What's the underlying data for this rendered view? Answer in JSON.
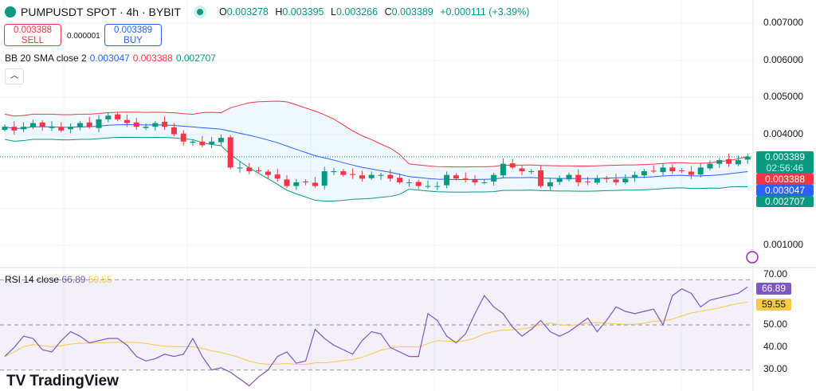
{
  "header": {
    "symbol": "PUMPUSDT SPOT · 4h · BYBIT",
    "o_label": "O",
    "o": "0.003278",
    "h_label": "H",
    "h": "0.003395",
    "l_label": "L",
    "l": "0.003266",
    "c_label": "C",
    "c": "0.003389",
    "change": "+0.000111 (+3.39%)"
  },
  "trade": {
    "sell_price": "0.003388",
    "sell_label": "SELL",
    "spread": "0.000001",
    "buy_price": "0.003389",
    "buy_label": "BUY"
  },
  "bb": {
    "label": "BB 20 SMA close 2",
    "basis": "0.003047",
    "upper": "0.003388",
    "lower": "0.002707"
  },
  "rsi": {
    "label": "RSI 14 close",
    "value": "66.89",
    "sma": "59.55"
  },
  "price_axis": [
    "0.007000",
    "0.006000",
    "0.005000",
    "0.004000",
    "0.001000"
  ],
  "rsi_axis": [
    "70.00",
    "50.00",
    "40.00",
    "30.00"
  ],
  "tags": {
    "last": "0.003389",
    "countdown": "02:56:46",
    "upper": "0.003388",
    "basis": "0.003047",
    "lower": "0.002707"
  },
  "brand": "TradingView",
  "colors": {
    "up": "#089981",
    "down": "#f23645",
    "basis": "#2962ff",
    "rsi": "#7e57c2",
    "rsi_ma": "#f7c948"
  },
  "chart_data": {
    "type": "candlestick",
    "closes": [
      0.0042,
      0.0041,
      0.0042,
      0.0043,
      0.0042,
      0.0042,
      0.0041,
      0.0042,
      0.0043,
      0.0042,
      0.0044,
      0.0045,
      0.0044,
      0.0043,
      0.0042,
      0.0042,
      0.0043,
      0.0042,
      0.004,
      0.0038,
      0.0038,
      0.0037,
      0.0038,
      0.0039,
      0.0031,
      0.0031,
      0.003,
      0.003,
      0.0029,
      0.0028,
      0.0026,
      0.0027,
      0.0027,
      0.0026,
      0.003,
      0.003,
      0.0029,
      0.0029,
      0.0028,
      0.0029,
      0.0029,
      0.0028,
      0.0027,
      0.0027,
      0.0026,
      0.0026,
      0.0026,
      0.0029,
      0.0028,
      0.0028,
      0.0027,
      0.0027,
      0.0029,
      0.0032,
      0.0031,
      0.003,
      0.003,
      0.0026,
      0.0027,
      0.0028,
      0.0029,
      0.0027,
      0.0027,
      0.0028,
      0.0028,
      0.0027,
      0.0028,
      0.0029,
      0.003,
      0.003,
      0.0031,
      0.003,
      0.003,
      0.0029,
      0.0031,
      0.0032,
      0.0033,
      0.0032,
      0.0033,
      0.003389
    ],
    "rsi": [
      36,
      40,
      45,
      44,
      39,
      38,
      43,
      47,
      45,
      42,
      43,
      44,
      44,
      41,
      36,
      34,
      35,
      37,
      36,
      37,
      44,
      36,
      30,
      31,
      29,
      26,
      23,
      27,
      30,
      36,
      38,
      33,
      34,
      48,
      44,
      41,
      39,
      37,
      43,
      47,
      46,
      40,
      38,
      36,
      36,
      55,
      52,
      45,
      42,
      46,
      55,
      63,
      58,
      55,
      49,
      45,
      48,
      52,
      47,
      45,
      47,
      50,
      53,
      47,
      52,
      58,
      56,
      55,
      56,
      57,
      50,
      63,
      66,
      64,
      58,
      61,
      62,
      63,
      64,
      66.89
    ]
  }
}
